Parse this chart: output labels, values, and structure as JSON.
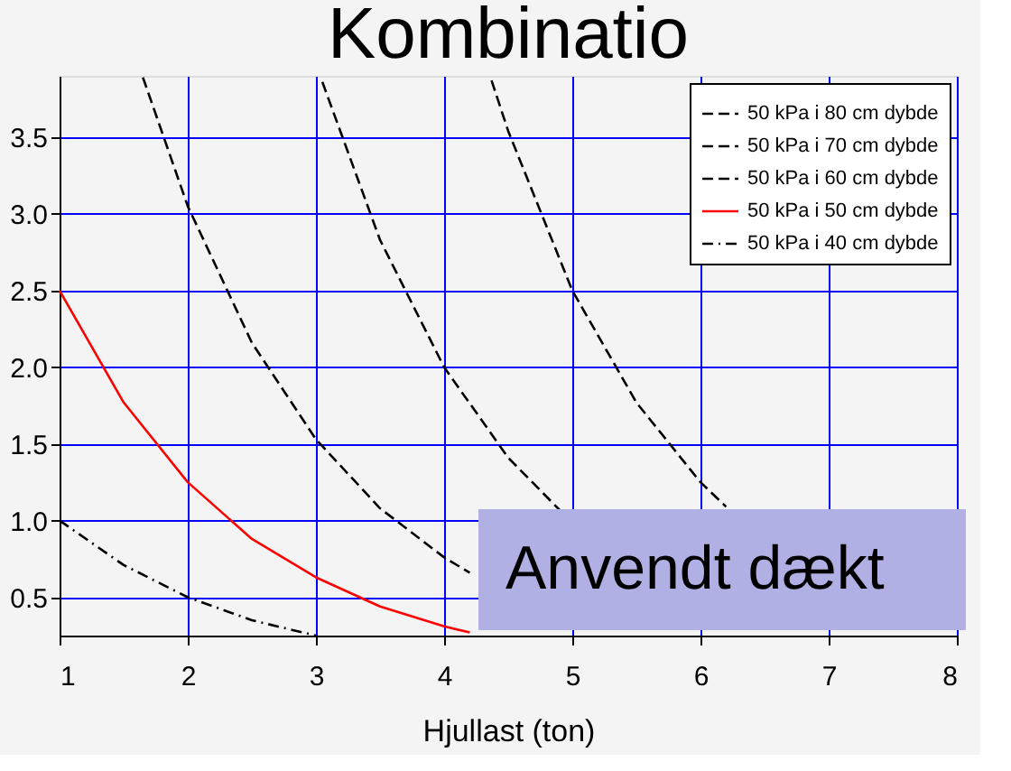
{
  "chart_data": {
    "type": "line",
    "title": "Kombinatio",
    "xlabel": "Hjullast (ton)",
    "xlim": [
      1,
      8
    ],
    "xticks": [
      1,
      2,
      3,
      4,
      5,
      6,
      7,
      8
    ],
    "ylim": [
      0.25,
      3.9
    ],
    "yticks": [
      0.5,
      {
        "value": 1,
        "label": "1.0"
      },
      1.5,
      {
        "value": 2,
        "label": "2.0"
      },
      2.5,
      {
        "value": 3,
        "label": "3.0"
      },
      3.5
    ],
    "grid": true,
    "legend": "top right",
    "marker": "none",
    "annotations": [
      "Anvendt dækt"
    ],
    "series": [
      {
        "name": "50 kPa i 80 cm dybde",
        "color": "#000000",
        "line_style": "dashed",
        "x": [
          4.37,
          4.5,
          5,
          5.5,
          6,
          6.2
        ],
        "values": [
          3.87,
          3.54,
          2.5,
          1.77,
          1.25,
          1.09
        ]
      },
      {
        "name": "50 kPa i 70 cm dybde",
        "color": "#000000",
        "line_style": "dashed",
        "x": [
          3.05,
          3.5,
          4,
          4.5,
          4.9
        ],
        "values": [
          3.86,
          2.83,
          2.0,
          1.41,
          1.07
        ]
      },
      {
        "name": "50 kPa i 60 cm dybde",
        "color": "#000000",
        "line_style": "dashed",
        "x": [
          1.65,
          2,
          2.5,
          3,
          3.5,
          4,
          4.2
        ],
        "values": [
          3.89,
          3.05,
          2.16,
          1.53,
          1.08,
          0.76,
          0.66
        ]
      },
      {
        "name": "50 kPa i 50 cm dybde",
        "color": "#ff0000",
        "line_style": "solid",
        "x": [
          1,
          1.5,
          2,
          2.5,
          3,
          3.5,
          4,
          4.2
        ],
        "values": [
          2.5,
          1.77,
          1.25,
          0.88,
          0.63,
          0.44,
          0.31,
          0.27
        ]
      },
      {
        "name": "50 kPa i 40 cm dybde",
        "color": "#000000",
        "line_style": "dotted",
        "x": [
          1,
          1.5,
          2,
          2.5,
          3
        ],
        "values": [
          1.0,
          0.71,
          0.5,
          0.35,
          0.25
        ]
      }
    ]
  }
}
